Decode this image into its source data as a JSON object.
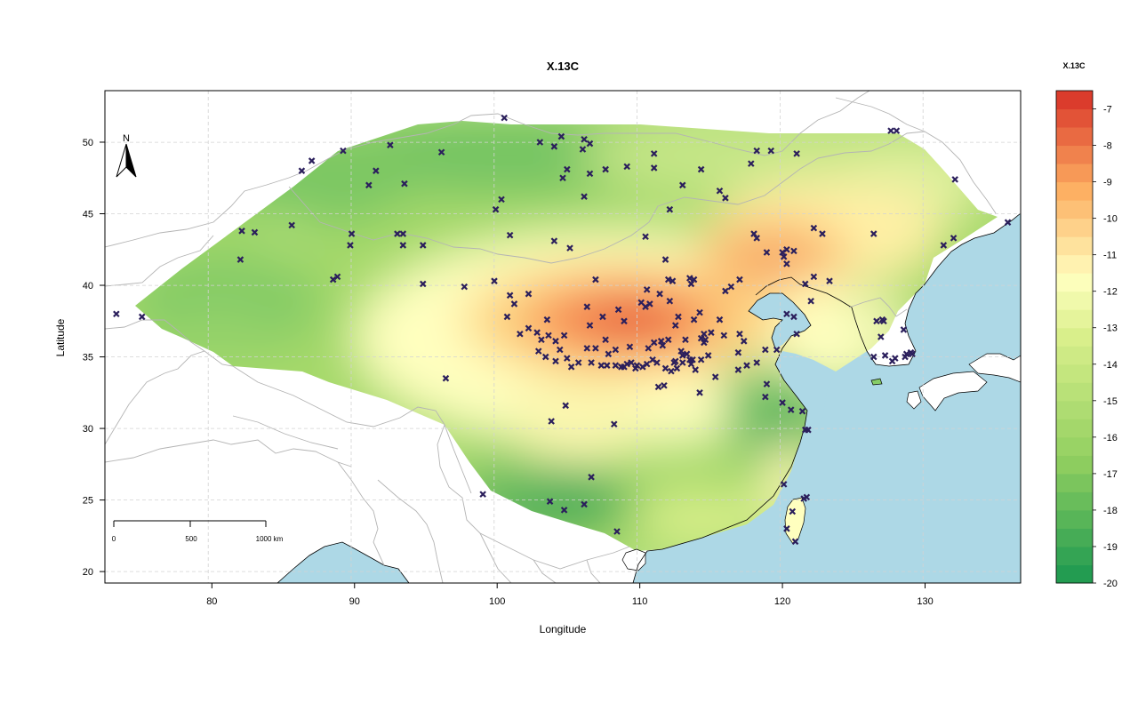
{
  "map": {
    "title": "X.13C",
    "xlabel": "Longitude",
    "ylabel": "Latitude",
    "north_label": "N",
    "x_ticks": [
      "80",
      "90",
      "100",
      "110",
      "120",
      "130"
    ],
    "y_ticks": [
      "20",
      "25",
      "30",
      "35",
      "40",
      "45",
      "50"
    ],
    "xlim": [
      72.5,
      136.7
    ],
    "ylim": [
      19.2,
      53.6
    ],
    "grid": true,
    "scale_bar": {
      "labels": [
        "0",
        "500",
        "1000 km"
      ]
    },
    "legend": {
      "title": "X.13C",
      "placement": "right",
      "range": [
        -20,
        -6.5
      ],
      "labels": [
        "-7",
        "-8",
        "-9",
        "-10",
        "-11",
        "-12",
        "-13",
        "-14",
        "-15",
        "-16",
        "-17",
        "-18",
        "-19",
        "-20"
      ]
    },
    "colors": {
      "high": "#d73027",
      "mid": "#ffffbf",
      "low": "#1a9850",
      "water": "#add8e6",
      "points": "#2b1f5c",
      "borders": "#b4b4b4",
      "grid": "#d3d3d3"
    },
    "sample_points": [
      [
        100.5,
        51.7
      ],
      [
        104.5,
        50.4
      ],
      [
        106.1,
        50.2
      ],
      [
        103,
        50
      ],
      [
        106.5,
        49.9
      ],
      [
        104,
        49.7
      ],
      [
        106,
        49.5
      ],
      [
        111,
        49.2
      ],
      [
        118.2,
        49.4
      ],
      [
        119.2,
        49.4
      ],
      [
        121,
        49.2
      ],
      [
        92.5,
        49.8
      ],
      [
        89.2,
        49.4
      ],
      [
        87,
        48.7
      ],
      [
        86.3,
        48
      ],
      [
        91.5,
        48
      ],
      [
        91,
        47
      ],
      [
        93.5,
        47.1
      ],
      [
        104.9,
        48.1
      ],
      [
        104.6,
        47.5
      ],
      [
        106.5,
        47.8
      ],
      [
        107.6,
        48.1
      ],
      [
        109.1,
        48.3
      ],
      [
        111,
        48.2
      ],
      [
        114.3,
        48.1
      ],
      [
        117.8,
        48.5
      ],
      [
        113,
        47
      ],
      [
        115.6,
        46.6
      ],
      [
        106.1,
        46.2
      ],
      [
        100.3,
        46
      ],
      [
        99.9,
        45.3
      ],
      [
        112.1,
        45.3
      ],
      [
        116,
        46.1
      ],
      [
        85.6,
        44.2
      ],
      [
        82.1,
        43.8
      ],
      [
        83,
        43.7
      ],
      [
        89.8,
        43.6
      ],
      [
        93,
        43.6
      ],
      [
        93.4,
        43.6
      ],
      [
        93.4,
        42.8
      ],
      [
        89.7,
        42.8
      ],
      [
        94.8,
        42.8
      ],
      [
        100.9,
        43.5
      ],
      [
        104,
        43.1
      ],
      [
        105.1,
        42.6
      ],
      [
        110.4,
        43.4
      ],
      [
        118,
        43.6
      ],
      [
        118.2,
        43.3
      ],
      [
        120,
        42.3
      ],
      [
        122.2,
        44
      ],
      [
        122.8,
        43.6
      ],
      [
        126.4,
        43.6
      ],
      [
        132,
        43.3
      ],
      [
        131.3,
        42.8
      ],
      [
        135.8,
        44.4
      ],
      [
        127.6,
        50.8
      ],
      [
        128,
        50.8
      ],
      [
        132.1,
        47.4
      ],
      [
        82,
        41.8
      ],
      [
        88.5,
        40.4
      ],
      [
        88.8,
        40.6
      ],
      [
        94.8,
        40.1
      ],
      [
        97.7,
        39.9
      ],
      [
        99.8,
        40.3
      ],
      [
        100.9,
        39.3
      ],
      [
        102.2,
        39.4
      ],
      [
        101.2,
        38.7
      ],
      [
        100.7,
        37.8
      ],
      [
        103.5,
        37.6
      ],
      [
        106.9,
        40.4
      ],
      [
        111.8,
        41.8
      ],
      [
        112,
        40.4
      ],
      [
        112.3,
        40.3
      ],
      [
        113.5,
        40.5
      ],
      [
        113.8,
        40.4
      ],
      [
        113.6,
        40.1
      ],
      [
        114.2,
        38.1
      ],
      [
        116.4,
        39.9
      ],
      [
        116,
        39.6
      ],
      [
        117,
        40.4
      ],
      [
        118.9,
        42.3
      ],
      [
        120.3,
        42.5
      ],
      [
        120.8,
        42.4
      ],
      [
        120.1,
        42
      ],
      [
        120.3,
        41.5
      ],
      [
        121.6,
        40.1
      ],
      [
        122.2,
        40.6
      ],
      [
        123.3,
        40.3
      ],
      [
        122,
        38.9
      ],
      [
        120.8,
        37.8
      ],
      [
        121,
        36.6
      ],
      [
        117,
        36.6
      ],
      [
        117.3,
        36.1
      ],
      [
        115,
        36.7
      ],
      [
        114.5,
        36.6
      ],
      [
        114.5,
        36
      ],
      [
        113.8,
        37.6
      ],
      [
        112.7,
        37.8
      ],
      [
        112.5,
        37.2
      ],
      [
        111.5,
        36.1
      ],
      [
        111,
        36
      ],
      [
        112.1,
        38.9
      ],
      [
        111.4,
        39.4
      ],
      [
        110.5,
        39.7
      ],
      [
        110.1,
        38.8
      ],
      [
        110.7,
        38.7
      ],
      [
        110.4,
        38.5
      ],
      [
        108.9,
        37.5
      ],
      [
        108.5,
        38.3
      ],
      [
        107.4,
        37.8
      ],
      [
        106.3,
        38.5
      ],
      [
        106.5,
        37.2
      ],
      [
        104.7,
        36.5
      ],
      [
        104.1,
        36.1
      ],
      [
        103.6,
        36.5
      ],
      [
        103.1,
        36.2
      ],
      [
        102.8,
        36.7
      ],
      [
        102.2,
        37
      ],
      [
        101.6,
        36.6
      ],
      [
        107.6,
        36.2
      ],
      [
        106.3,
        35.6
      ],
      [
        106.9,
        35.6
      ],
      [
        107.8,
        35.2
      ],
      [
        107.7,
        34.4
      ],
      [
        108.3,
        34.4
      ],
      [
        108.9,
        34.3
      ],
      [
        109.1,
        34.5
      ],
      [
        109.4,
        34.6
      ],
      [
        109.8,
        34.4
      ],
      [
        110.5,
        34.5
      ],
      [
        111.2,
        34.6
      ],
      [
        112.4,
        34.6
      ],
      [
        112.5,
        34.7
      ],
      [
        113,
        34.6
      ],
      [
        113.5,
        34.8
      ],
      [
        113.6,
        34.5
      ],
      [
        113.7,
        34.8
      ],
      [
        113.9,
        34.1
      ],
      [
        114.3,
        34.8
      ],
      [
        114.8,
        35.1
      ],
      [
        113.3,
        35.2
      ],
      [
        112.9,
        35.4
      ],
      [
        112.6,
        34.2
      ],
      [
        112.2,
        34
      ],
      [
        111.8,
        34.2
      ],
      [
        110.9,
        34.8
      ],
      [
        110.2,
        34.3
      ],
      [
        109.7,
        34.2
      ],
      [
        108.7,
        34.3
      ],
      [
        107.3,
        34.4
      ],
      [
        106.6,
        34.6
      ],
      [
        105.7,
        34.6
      ],
      [
        105.2,
        34.3
      ],
      [
        104.9,
        34.9
      ],
      [
        104.1,
        34.7
      ],
      [
        103.4,
        35
      ],
      [
        102.9,
        35.4
      ],
      [
        104.4,
        35.5
      ],
      [
        108.3,
        35.5
      ],
      [
        109.3,
        35.7
      ],
      [
        110.6,
        35.6
      ],
      [
        111.6,
        35.8
      ],
      [
        112,
        36.2
      ],
      [
        113.2,
        36.2
      ],
      [
        114.3,
        36.3
      ],
      [
        115.6,
        37.6
      ],
      [
        115.9,
        36.5
      ],
      [
        116.9,
        35.3
      ],
      [
        117.5,
        34.4
      ],
      [
        118.8,
        35.5
      ],
      [
        118.2,
        34.6
      ],
      [
        119.6,
        35.5
      ],
      [
        121.4,
        31.2
      ],
      [
        120.6,
        31.3
      ],
      [
        121.6,
        29.9
      ],
      [
        121.8,
        29.9
      ],
      [
        120,
        31.8
      ],
      [
        118.8,
        32.2
      ],
      [
        118.9,
        33.1
      ],
      [
        116.9,
        34.1
      ],
      [
        115.3,
        33.6
      ],
      [
        114.2,
        32.5
      ],
      [
        111.3,
        32.9
      ],
      [
        111.7,
        33
      ],
      [
        113,
        35.1
      ],
      [
        106.6,
        26.6
      ],
      [
        104.8,
        31.6
      ],
      [
        103.8,
        30.5
      ],
      [
        108.2,
        30.3
      ],
      [
        96.4,
        33.5
      ],
      [
        120.1,
        26.1
      ],
      [
        121.5,
        25.1
      ],
      [
        121.7,
        25.2
      ],
      [
        120.7,
        24.2
      ],
      [
        120.3,
        23
      ],
      [
        120.9,
        22.1
      ],
      [
        108.4,
        22.8
      ],
      [
        106.1,
        24.7
      ],
      [
        103.7,
        24.9
      ],
      [
        104.7,
        24.3
      ],
      [
        99,
        25.4
      ],
      [
        128.5,
        36.9
      ],
      [
        126.6,
        37.5
      ],
      [
        127.1,
        37.5
      ],
      [
        126.9,
        36.4
      ],
      [
        127,
        37.6
      ],
      [
        126.4,
        35
      ],
      [
        127.2,
        35.1
      ],
      [
        127.9,
        34.9
      ],
      [
        128.6,
        35
      ],
      [
        128.7,
        35.2
      ],
      [
        129,
        35.3
      ],
      [
        129.1,
        35.2
      ],
      [
        127.7,
        34.7
      ],
      [
        73.3,
        38
      ],
      [
        75.1,
        37.8
      ],
      [
        96.1,
        49.3
      ],
      [
        120.3,
        38
      ],
      [
        114.6,
        36.2
      ]
    ]
  }
}
